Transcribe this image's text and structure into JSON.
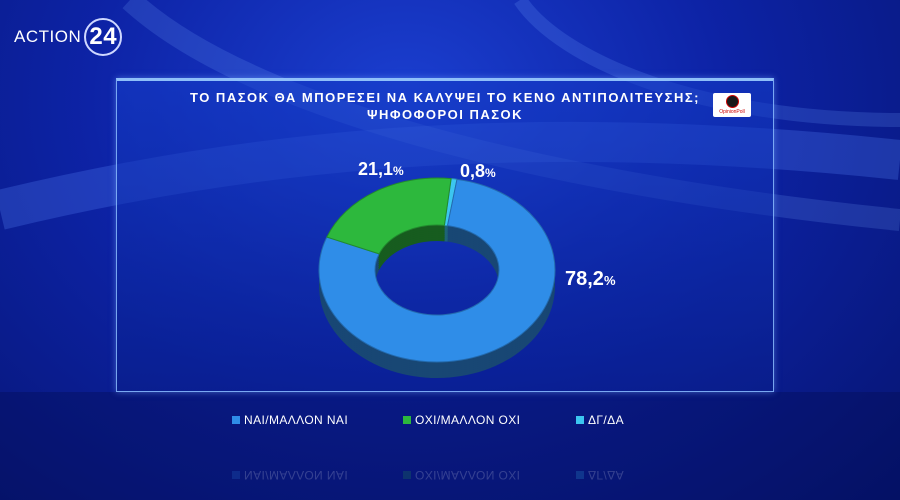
{
  "channel_logo": {
    "text": "ACTION",
    "number": "24"
  },
  "pollster_badge": {
    "name": "OpinionPoll"
  },
  "chart_data": {
    "type": "pie",
    "title": "ΤΟ ΠΑΣΟΚ ΘΑ ΜΠΟΡΕΣΕΙ ΝΑ ΚΑΛΥΨΕΙ ΤΟ ΚΕΝΟ ΑΝΤΙΠΟΛΙΤΕΥΣΗΣ;",
    "subtitle": "ΨΗΦΟΦΟΡΟΙ ΠΑΣΟΚ",
    "categories": [
      "ΝΑΙ/ΜΑΛΛΟΝ ΝΑΙ",
      "ΟΧΙ/ΜΑΛΛΟΝ ΟΧΙ",
      "ΔΓ/ΔΑ"
    ],
    "values": [
      78.2,
      21.1,
      0.8
    ],
    "labels": [
      "78,2",
      "21,1",
      "0,8"
    ],
    "unit": "%",
    "colors": [
      "#2f8de8",
      "#2db83d",
      "#3cc6f0"
    ],
    "donut": true,
    "legend": "bottom"
  }
}
